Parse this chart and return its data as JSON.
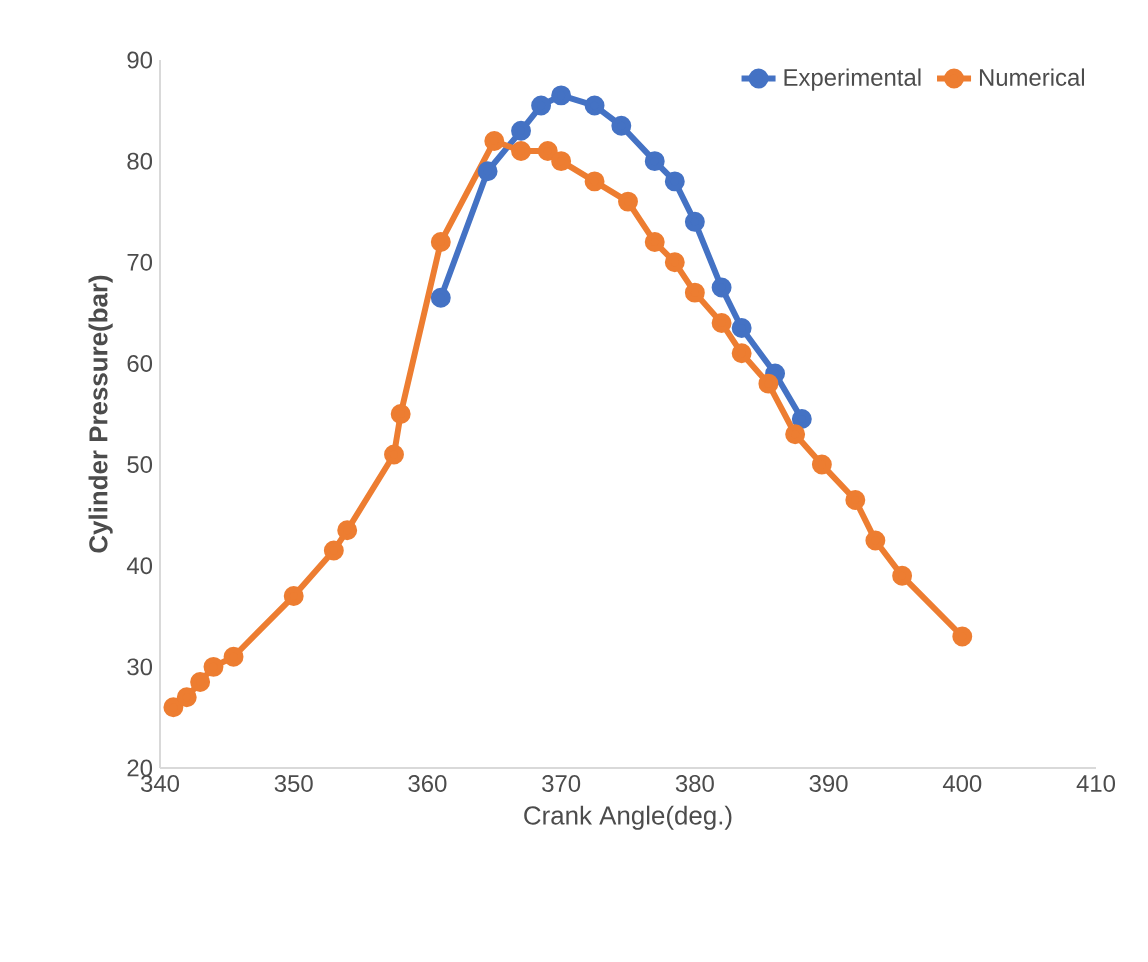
{
  "chart_data": {
    "type": "line",
    "xlabel": "Crank Angle(deg.)",
    "ylabel": "Cylinder Pressure(bar)",
    "xlim": [
      340,
      410
    ],
    "ylim": [
      20,
      90
    ],
    "xticks": [
      340,
      350,
      360,
      370,
      380,
      390,
      400,
      410
    ],
    "yticks": [
      20,
      30,
      40,
      50,
      60,
      70,
      80,
      90
    ],
    "grid": false,
    "legend": "top right",
    "marker": "circle",
    "line_style": "solid",
    "series": [
      {
        "name": "Experimental",
        "color": "#4472c4",
        "x": [
          361,
          364.5,
          367,
          368.5,
          370,
          372.5,
          374.5,
          377,
          378.5,
          380,
          382,
          383.5,
          386,
          388
        ],
        "values": [
          66.5,
          79,
          83,
          85.5,
          86.5,
          85.5,
          83.5,
          80,
          78,
          74,
          67.5,
          63.5,
          59,
          54.5
        ]
      },
      {
        "name": "Numerical",
        "color": "#ed7d31",
        "x": [
          341,
          342,
          343,
          344,
          345.5,
          350,
          353,
          354,
          357.5,
          358,
          361,
          365,
          367,
          369,
          370,
          372.5,
          375,
          377,
          378.5,
          380,
          382,
          383.5,
          385.5,
          387.5,
          389.5,
          392,
          393.5,
          395.5,
          400
        ],
        "values": [
          26,
          27,
          28.5,
          30,
          31,
          37,
          41.5,
          43.5,
          51,
          55,
          72,
          82,
          81,
          81,
          80,
          78,
          76,
          72,
          70,
          67,
          64,
          61,
          58,
          53,
          50,
          46.5,
          42.5,
          39,
          33
        ]
      }
    ]
  }
}
